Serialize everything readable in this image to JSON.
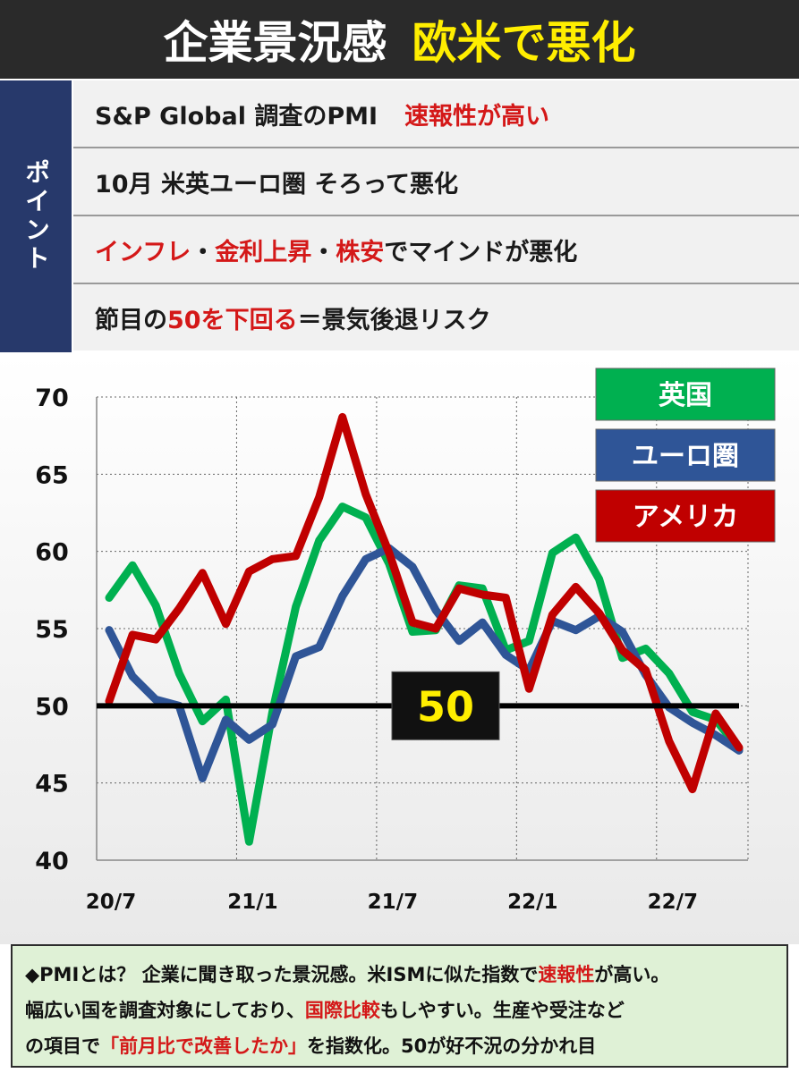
{
  "header": {
    "title": "企業景況感",
    "subtitle": "欧米で悪化"
  },
  "points": {
    "label": "ポイント",
    "row1": {
      "a": "S&P Global 調査のPMI",
      "b": "速報性が高い"
    },
    "row2": {
      "a": "10月 米英ユーロ圏 そろって悪化"
    },
    "row3": {
      "r1": "インフレ",
      "s1": "・",
      "r2": "金利上昇",
      "s2": "・",
      "r3": "株安",
      "t": "でマインドが悪化"
    },
    "row4": {
      "a": "節目の",
      "r": "50を下回る",
      "b": "＝景気後退リスク"
    }
  },
  "chart_data": {
    "type": "line",
    "ylim": [
      40,
      70
    ],
    "yticks": [
      "40",
      "45",
      "50",
      "55",
      "60",
      "65",
      "70"
    ],
    "xticks": [
      "20/7",
      "21/1",
      "21/7",
      "22/1",
      "22/7"
    ],
    "reference": {
      "value": 50,
      "label": "50"
    },
    "x": [
      "2020-07",
      "2020-08",
      "2020-09",
      "2020-10",
      "2020-11",
      "2020-12",
      "2021-01",
      "2021-02",
      "2021-03",
      "2021-04",
      "2021-05",
      "2021-06",
      "2021-07",
      "2021-08",
      "2021-09",
      "2021-10",
      "2021-11",
      "2021-12",
      "2022-01",
      "2022-02",
      "2022-03",
      "2022-04",
      "2022-05",
      "2022-06",
      "2022-07",
      "2022-08",
      "2022-09",
      "2022-10"
    ],
    "series": [
      {
        "name": "英国",
        "color": "#00b050",
        "values": [
          57.0,
          59.1,
          56.5,
          52.1,
          49.0,
          50.4,
          41.2,
          49.6,
          56.4,
          60.7,
          62.9,
          62.2,
          59.2,
          54.8,
          54.9,
          57.8,
          57.6,
          53.6,
          54.2,
          59.9,
          60.9,
          58.2,
          53.1,
          53.7,
          52.1,
          49.6,
          49.1,
          47.2
        ]
      },
      {
        "name": "ユーロ圏",
        "color": "#2f5597",
        "values": [
          54.9,
          51.9,
          50.4,
          50.0,
          45.3,
          49.1,
          47.8,
          48.8,
          53.2,
          53.8,
          57.1,
          59.5,
          60.2,
          59.0,
          56.2,
          54.2,
          55.4,
          53.3,
          52.3,
          55.5,
          54.9,
          55.8,
          54.8,
          52.0,
          49.9,
          48.9,
          48.1,
          47.1
        ]
      },
      {
        "name": "アメリカ",
        "color": "#c00000",
        "values": [
          50.3,
          54.6,
          54.3,
          56.3,
          58.6,
          55.3,
          58.7,
          59.5,
          59.7,
          63.5,
          68.7,
          63.7,
          59.9,
          55.4,
          55.0,
          57.6,
          57.2,
          57.0,
          51.1,
          55.9,
          57.7,
          56.0,
          53.6,
          52.3,
          47.7,
          44.6,
          49.5,
          47.3
        ]
      }
    ]
  },
  "note": {
    "l1a": "◆PMIとは？ 企業に聞き取った景況感。米ISMに似た指数で",
    "l1r": "速報性",
    "l1b": "が高い。",
    "l2a": "幅広い国を調査対象にしており、",
    "l2r": "国際比較",
    "l2b": "もしやすい。生産や受注など",
    "l3a": "の項目で",
    "l3r": "「前月比で改善したか」",
    "l3b": "を指数化。50が好不況の分かれ目"
  }
}
